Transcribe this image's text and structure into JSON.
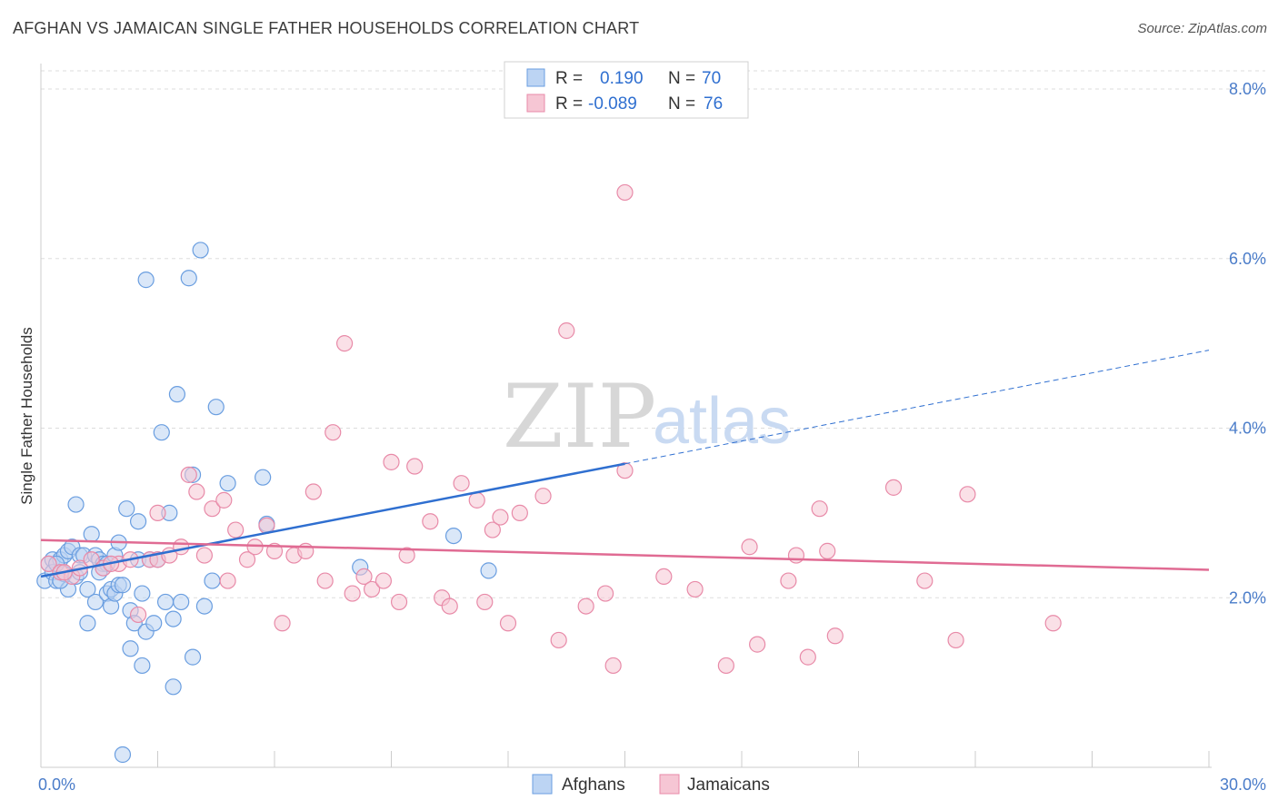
{
  "header": {
    "title": "AFGHAN VS JAMAICAN SINGLE FATHER HOUSEHOLDS CORRELATION CHART",
    "source": "Source: ZipAtlas.com"
  },
  "watermark": {
    "zip": "ZIP",
    "atlas": "atlas"
  },
  "legend": {
    "rows": [
      {
        "r_label": "R =",
        "r_value": "0.190",
        "n_label": "N =",
        "n_value": "70"
      },
      {
        "r_label": "R =",
        "r_value": "-0.089",
        "n_label": "N =",
        "n_value": "76"
      }
    ]
  },
  "chart_data": {
    "type": "scatter",
    "ylabel": "Single Father Households",
    "xlim": [
      0,
      30
    ],
    "ylim": [
      0,
      8.3
    ],
    "x_tick_labels": [
      {
        "value": 0,
        "label": "0.0%"
      },
      {
        "value": 30,
        "label": "30.0%"
      }
    ],
    "y_ticks": [
      {
        "value": 2,
        "label": "2.0%"
      },
      {
        "value": 4,
        "label": "4.0%"
      },
      {
        "value": 6,
        "label": "6.0%"
      },
      {
        "value": 8,
        "label": "8.0%"
      }
    ],
    "grid": true,
    "series": [
      {
        "name": "Afghans",
        "color": "#6a9ee0",
        "fill": "#bcd4f3",
        "trend": {
          "x0": 0,
          "y0": 2.25,
          "x1": 15,
          "y1": 3.58,
          "x_end": 30,
          "y_end": 4.92,
          "color": "#2f6fd0"
        },
        "points": [
          [
            0.1,
            2.2
          ],
          [
            0.2,
            2.4
          ],
          [
            0.3,
            2.45
          ],
          [
            0.3,
            2.3
          ],
          [
            0.4,
            2.2
          ],
          [
            0.5,
            2.45
          ],
          [
            0.6,
            2.5
          ],
          [
            0.6,
            2.28
          ],
          [
            0.7,
            2.1
          ],
          [
            0.7,
            2.55
          ],
          [
            0.8,
            2.6
          ],
          [
            0.9,
            2.25
          ],
          [
            0.9,
            3.1
          ],
          [
            1.0,
            2.5
          ],
          [
            1.1,
            2.5
          ],
          [
            1.2,
            2.1
          ],
          [
            1.2,
            1.7
          ],
          [
            1.3,
            2.75
          ],
          [
            1.4,
            2.5
          ],
          [
            1.4,
            1.95
          ],
          [
            1.5,
            2.45
          ],
          [
            1.6,
            2.35
          ],
          [
            1.6,
            2.4
          ],
          [
            1.7,
            2.05
          ],
          [
            1.7,
            2.4
          ],
          [
            1.8,
            2.1
          ],
          [
            1.8,
            1.9
          ],
          [
            1.9,
            2.5
          ],
          [
            1.9,
            2.05
          ],
          [
            2.0,
            2.15
          ],
          [
            2.0,
            2.65
          ],
          [
            2.1,
            2.15
          ],
          [
            2.2,
            3.05
          ],
          [
            2.3,
            1.85
          ],
          [
            2.3,
            1.4
          ],
          [
            2.4,
            1.7
          ],
          [
            2.5,
            2.45
          ],
          [
            2.5,
            2.9
          ],
          [
            2.6,
            2.05
          ],
          [
            2.6,
            1.2
          ],
          [
            2.7,
            1.6
          ],
          [
            2.7,
            5.75
          ],
          [
            2.9,
            1.7
          ],
          [
            3.0,
            2.45
          ],
          [
            3.1,
            3.95
          ],
          [
            3.2,
            1.95
          ],
          [
            3.3,
            3.0
          ],
          [
            3.4,
            1.75
          ],
          [
            3.4,
            0.95
          ],
          [
            3.5,
            4.4
          ],
          [
            3.6,
            1.95
          ],
          [
            3.8,
            5.77
          ],
          [
            3.9,
            3.45
          ],
          [
            3.9,
            1.3
          ],
          [
            4.1,
            6.1
          ],
          [
            4.2,
            1.9
          ],
          [
            4.4,
            2.2
          ],
          [
            4.5,
            4.25
          ],
          [
            4.8,
            3.35
          ],
          [
            5.7,
            3.42
          ],
          [
            5.8,
            2.87
          ],
          [
            10.6,
            2.73
          ],
          [
            11.5,
            2.32
          ],
          [
            8.2,
            2.36
          ],
          [
            2.1,
            0.15
          ],
          [
            1.0,
            2.3
          ],
          [
            0.5,
            2.2
          ],
          [
            1.5,
            2.3
          ],
          [
            2.8,
            2.45
          ],
          [
            0.4,
            2.4
          ]
        ]
      },
      {
        "name": "Jamaicans",
        "color": "#e88aa8",
        "fill": "#f6c6d4",
        "trend": {
          "x0": 0,
          "y0": 2.68,
          "x1": 30,
          "y1": 2.33,
          "color": "#e06b93"
        },
        "points": [
          [
            0.2,
            2.4
          ],
          [
            0.5,
            2.3
          ],
          [
            0.8,
            2.25
          ],
          [
            1.0,
            2.35
          ],
          [
            1.3,
            2.45
          ],
          [
            1.6,
            2.35
          ],
          [
            2.0,
            2.4
          ],
          [
            2.3,
            2.45
          ],
          [
            2.5,
            1.8
          ],
          [
            2.8,
            2.45
          ],
          [
            3.0,
            2.45
          ],
          [
            3.0,
            3.0
          ],
          [
            3.3,
            2.5
          ],
          [
            3.6,
            2.6
          ],
          [
            3.8,
            3.45
          ],
          [
            4.0,
            3.25
          ],
          [
            4.2,
            2.5
          ],
          [
            4.4,
            3.05
          ],
          [
            4.7,
            3.15
          ],
          [
            4.8,
            2.2
          ],
          [
            5.0,
            2.8
          ],
          [
            5.3,
            2.45
          ],
          [
            5.5,
            2.6
          ],
          [
            5.8,
            2.85
          ],
          [
            6.0,
            2.55
          ],
          [
            6.2,
            1.7
          ],
          [
            6.5,
            2.5
          ],
          [
            6.8,
            2.55
          ],
          [
            7.0,
            3.25
          ],
          [
            7.3,
            2.2
          ],
          [
            7.5,
            3.95
          ],
          [
            7.8,
            5.0
          ],
          [
            8.0,
            2.05
          ],
          [
            8.3,
            2.25
          ],
          [
            8.5,
            2.1
          ],
          [
            8.8,
            2.2
          ],
          [
            9.0,
            3.6
          ],
          [
            9.2,
            1.95
          ],
          [
            9.4,
            2.5
          ],
          [
            9.6,
            3.55
          ],
          [
            10.0,
            2.9
          ],
          [
            10.3,
            2.0
          ],
          [
            10.5,
            1.9
          ],
          [
            10.8,
            3.35
          ],
          [
            11.2,
            3.15
          ],
          [
            11.4,
            1.95
          ],
          [
            11.6,
            2.8
          ],
          [
            11.8,
            2.95
          ],
          [
            12.0,
            1.7
          ],
          [
            12.3,
            3.0
          ],
          [
            12.9,
            3.2
          ],
          [
            13.3,
            1.5
          ],
          [
            13.5,
            5.15
          ],
          [
            14.0,
            1.9
          ],
          [
            14.5,
            2.05
          ],
          [
            14.7,
            1.2
          ],
          [
            15.0,
            6.78
          ],
          [
            15.0,
            3.5
          ],
          [
            16.0,
            2.25
          ],
          [
            16.8,
            2.1
          ],
          [
            17.6,
            1.2
          ],
          [
            18.2,
            2.6
          ],
          [
            18.4,
            1.45
          ],
          [
            19.2,
            2.2
          ],
          [
            19.4,
            2.5
          ],
          [
            19.7,
            1.3
          ],
          [
            20.0,
            3.05
          ],
          [
            20.2,
            2.55
          ],
          [
            20.4,
            1.55
          ],
          [
            21.9,
            3.3
          ],
          [
            22.7,
            2.2
          ],
          [
            23.5,
            1.5
          ],
          [
            23.8,
            3.22
          ],
          [
            26.0,
            1.7
          ],
          [
            1.8,
            2.4
          ],
          [
            0.6,
            2.3
          ]
        ]
      }
    ]
  }
}
